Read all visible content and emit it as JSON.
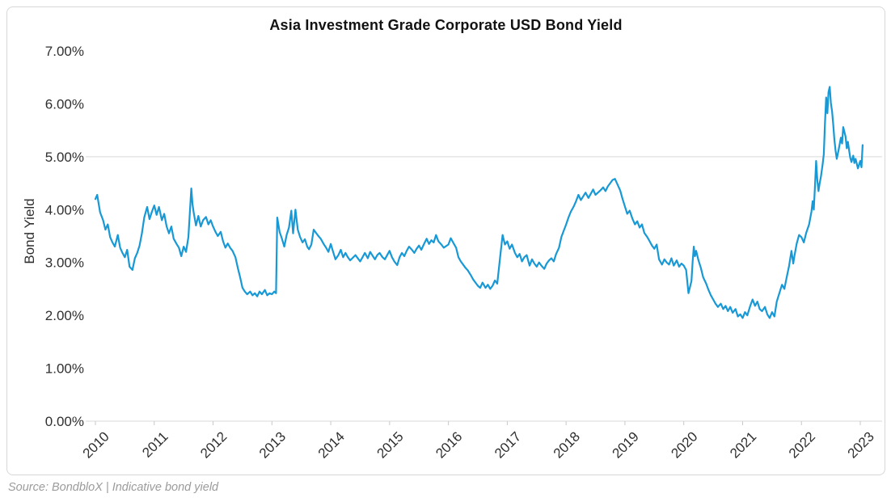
{
  "title": "Asia Investment Grade Corporate USD Bond Yield",
  "y_axis_title": "Bond Yield",
  "source_note": "Source: BondbloX | Indicative bond yield",
  "colors": {
    "line": "#1899D5",
    "grid": "#d9d9d9",
    "tick": "#c9c9c9",
    "label": "#2f2f2f",
    "title": "#121212",
    "source": "#9b9b9b",
    "card_border": "#d7d7d7"
  },
  "chart_data": {
    "type": "line",
    "title": "Asia Investment Grade Corporate USD Bond Yield",
    "xlabel": "",
    "ylabel": "Bond Yield",
    "series_name": "Indicative bond yield (%)",
    "legend": "none",
    "grid": "single horizontal gridline at 5.00% plus x-axis baseline",
    "gridline_at": 5,
    "ylim": [
      0,
      7
    ],
    "xlim": [
      2010,
      2023.37
    ],
    "x_ticks": [
      2010,
      2011,
      2012,
      2013,
      2014,
      2015,
      2016,
      2017,
      2018,
      2019,
      2020,
      2021,
      2022,
      2023
    ],
    "y_tick_values": [
      0,
      1,
      2,
      3,
      4,
      5,
      6,
      7
    ],
    "y_tick_labels": [
      "0.00%",
      "1.00%",
      "2.00%",
      "3.00%",
      "4.00%",
      "5.00%",
      "6.00%",
      "7.00%"
    ],
    "line_color": "#1899D5",
    "points": [
      [
        2010.0,
        4.2
      ],
      [
        2010.03,
        4.28
      ],
      [
        2010.08,
        3.95
      ],
      [
        2010.13,
        3.8
      ],
      [
        2010.17,
        3.62
      ],
      [
        2010.21,
        3.72
      ],
      [
        2010.25,
        3.48
      ],
      [
        2010.29,
        3.38
      ],
      [
        2010.33,
        3.3
      ],
      [
        2010.38,
        3.52
      ],
      [
        2010.42,
        3.28
      ],
      [
        2010.46,
        3.18
      ],
      [
        2010.5,
        3.1
      ],
      [
        2010.54,
        3.24
      ],
      [
        2010.58,
        2.92
      ],
      [
        2010.63,
        2.86
      ],
      [
        2010.67,
        3.08
      ],
      [
        2010.71,
        3.18
      ],
      [
        2010.75,
        3.32
      ],
      [
        2010.79,
        3.55
      ],
      [
        2010.83,
        3.85
      ],
      [
        2010.88,
        4.05
      ],
      [
        2010.92,
        3.82
      ],
      [
        2010.96,
        3.96
      ],
      [
        2011.0,
        4.08
      ],
      [
        2011.04,
        3.9
      ],
      [
        2011.08,
        4.05
      ],
      [
        2011.13,
        3.8
      ],
      [
        2011.17,
        3.92
      ],
      [
        2011.21,
        3.68
      ],
      [
        2011.25,
        3.55
      ],
      [
        2011.29,
        3.68
      ],
      [
        2011.33,
        3.45
      ],
      [
        2011.38,
        3.35
      ],
      [
        2011.42,
        3.28
      ],
      [
        2011.46,
        3.12
      ],
      [
        2011.5,
        3.3
      ],
      [
        2011.54,
        3.2
      ],
      [
        2011.58,
        3.48
      ],
      [
        2011.63,
        4.4
      ],
      [
        2011.65,
        4.1
      ],
      [
        2011.67,
        3.95
      ],
      [
        2011.71,
        3.7
      ],
      [
        2011.75,
        3.88
      ],
      [
        2011.79,
        3.68
      ],
      [
        2011.83,
        3.8
      ],
      [
        2011.88,
        3.86
      ],
      [
        2011.92,
        3.72
      ],
      [
        2011.96,
        3.8
      ],
      [
        2012.0,
        3.68
      ],
      [
        2012.04,
        3.58
      ],
      [
        2012.08,
        3.5
      ],
      [
        2012.13,
        3.58
      ],
      [
        2012.17,
        3.4
      ],
      [
        2012.21,
        3.28
      ],
      [
        2012.25,
        3.36
      ],
      [
        2012.29,
        3.28
      ],
      [
        2012.33,
        3.22
      ],
      [
        2012.38,
        3.1
      ],
      [
        2012.42,
        2.9
      ],
      [
        2012.46,
        2.72
      ],
      [
        2012.5,
        2.52
      ],
      [
        2012.54,
        2.45
      ],
      [
        2012.58,
        2.4
      ],
      [
        2012.63,
        2.45
      ],
      [
        2012.67,
        2.38
      ],
      [
        2012.71,
        2.42
      ],
      [
        2012.75,
        2.36
      ],
      [
        2012.79,
        2.45
      ],
      [
        2012.83,
        2.4
      ],
      [
        2012.88,
        2.48
      ],
      [
        2012.92,
        2.38
      ],
      [
        2012.96,
        2.42
      ],
      [
        2013.0,
        2.4
      ],
      [
        2013.04,
        2.45
      ],
      [
        2013.07,
        2.42
      ],
      [
        2013.09,
        3.85
      ],
      [
        2013.13,
        3.58
      ],
      [
        2013.17,
        3.45
      ],
      [
        2013.21,
        3.3
      ],
      [
        2013.25,
        3.52
      ],
      [
        2013.29,
        3.66
      ],
      [
        2013.33,
        3.98
      ],
      [
        2013.36,
        3.55
      ],
      [
        2013.4,
        4.0
      ],
      [
        2013.44,
        3.62
      ],
      [
        2013.48,
        3.48
      ],
      [
        2013.52,
        3.38
      ],
      [
        2013.56,
        3.44
      ],
      [
        2013.6,
        3.3
      ],
      [
        2013.63,
        3.25
      ],
      [
        2013.67,
        3.34
      ],
      [
        2013.71,
        3.62
      ],
      [
        2013.75,
        3.56
      ],
      [
        2013.79,
        3.5
      ],
      [
        2013.83,
        3.45
      ],
      [
        2013.88,
        3.35
      ],
      [
        2013.92,
        3.28
      ],
      [
        2013.96,
        3.2
      ],
      [
        2014.0,
        3.35
      ],
      [
        2014.04,
        3.2
      ],
      [
        2014.08,
        3.06
      ],
      [
        2014.13,
        3.14
      ],
      [
        2014.17,
        3.24
      ],
      [
        2014.21,
        3.1
      ],
      [
        2014.25,
        3.18
      ],
      [
        2014.29,
        3.1
      ],
      [
        2014.33,
        3.04
      ],
      [
        2014.42,
        3.14
      ],
      [
        2014.5,
        3.02
      ],
      [
        2014.54,
        3.1
      ],
      [
        2014.58,
        3.18
      ],
      [
        2014.63,
        3.08
      ],
      [
        2014.67,
        3.2
      ],
      [
        2014.75,
        3.06
      ],
      [
        2014.79,
        3.14
      ],
      [
        2014.83,
        3.18
      ],
      [
        2014.88,
        3.1
      ],
      [
        2014.92,
        3.06
      ],
      [
        2015.0,
        3.22
      ],
      [
        2015.04,
        3.1
      ],
      [
        2015.08,
        3.02
      ],
      [
        2015.13,
        2.95
      ],
      [
        2015.17,
        3.1
      ],
      [
        2015.21,
        3.18
      ],
      [
        2015.25,
        3.12
      ],
      [
        2015.29,
        3.22
      ],
      [
        2015.33,
        3.3
      ],
      [
        2015.38,
        3.24
      ],
      [
        2015.42,
        3.18
      ],
      [
        2015.46,
        3.26
      ],
      [
        2015.5,
        3.32
      ],
      [
        2015.54,
        3.24
      ],
      [
        2015.58,
        3.34
      ],
      [
        2015.63,
        3.45
      ],
      [
        2015.67,
        3.35
      ],
      [
        2015.71,
        3.42
      ],
      [
        2015.75,
        3.38
      ],
      [
        2015.79,
        3.52
      ],
      [
        2015.83,
        3.4
      ],
      [
        2015.88,
        3.34
      ],
      [
        2015.92,
        3.28
      ],
      [
        2016.0,
        3.34
      ],
      [
        2016.04,
        3.46
      ],
      [
        2016.08,
        3.38
      ],
      [
        2016.13,
        3.28
      ],
      [
        2016.17,
        3.1
      ],
      [
        2016.21,
        3.02
      ],
      [
        2016.25,
        2.96
      ],
      [
        2016.29,
        2.9
      ],
      [
        2016.33,
        2.85
      ],
      [
        2016.38,
        2.76
      ],
      [
        2016.42,
        2.68
      ],
      [
        2016.46,
        2.62
      ],
      [
        2016.5,
        2.56
      ],
      [
        2016.54,
        2.52
      ],
      [
        2016.58,
        2.62
      ],
      [
        2016.63,
        2.52
      ],
      [
        2016.67,
        2.58
      ],
      [
        2016.71,
        2.5
      ],
      [
        2016.75,
        2.56
      ],
      [
        2016.79,
        2.66
      ],
      [
        2016.83,
        2.6
      ],
      [
        2016.88,
        3.12
      ],
      [
        2016.92,
        3.52
      ],
      [
        2016.96,
        3.34
      ],
      [
        2017.0,
        3.4
      ],
      [
        2017.04,
        3.26
      ],
      [
        2017.08,
        3.34
      ],
      [
        2017.13,
        3.18
      ],
      [
        2017.17,
        3.1
      ],
      [
        2017.21,
        3.16
      ],
      [
        2017.25,
        3.02
      ],
      [
        2017.29,
        3.1
      ],
      [
        2017.33,
        3.14
      ],
      [
        2017.38,
        2.94
      ],
      [
        2017.42,
        3.06
      ],
      [
        2017.46,
        2.98
      ],
      [
        2017.5,
        2.92
      ],
      [
        2017.54,
        3.0
      ],
      [
        2017.58,
        2.94
      ],
      [
        2017.63,
        2.88
      ],
      [
        2017.67,
        2.98
      ],
      [
        2017.71,
        3.04
      ],
      [
        2017.75,
        3.08
      ],
      [
        2017.79,
        3.02
      ],
      [
        2017.83,
        3.16
      ],
      [
        2017.88,
        3.28
      ],
      [
        2017.92,
        3.48
      ],
      [
        2017.96,
        3.6
      ],
      [
        2018.0,
        3.72
      ],
      [
        2018.04,
        3.85
      ],
      [
        2018.08,
        3.96
      ],
      [
        2018.13,
        4.06
      ],
      [
        2018.17,
        4.16
      ],
      [
        2018.21,
        4.28
      ],
      [
        2018.25,
        4.18
      ],
      [
        2018.29,
        4.25
      ],
      [
        2018.33,
        4.32
      ],
      [
        2018.38,
        4.22
      ],
      [
        2018.42,
        4.3
      ],
      [
        2018.46,
        4.38
      ],
      [
        2018.5,
        4.28
      ],
      [
        2018.54,
        4.32
      ],
      [
        2018.58,
        4.36
      ],
      [
        2018.63,
        4.42
      ],
      [
        2018.67,
        4.35
      ],
      [
        2018.71,
        4.44
      ],
      [
        2018.75,
        4.5
      ],
      [
        2018.79,
        4.56
      ],
      [
        2018.83,
        4.58
      ],
      [
        2018.88,
        4.46
      ],
      [
        2018.92,
        4.36
      ],
      [
        2018.96,
        4.2
      ],
      [
        2019.0,
        4.06
      ],
      [
        2019.04,
        3.92
      ],
      [
        2019.08,
        3.98
      ],
      [
        2019.13,
        3.82
      ],
      [
        2019.17,
        3.72
      ],
      [
        2019.21,
        3.78
      ],
      [
        2019.25,
        3.66
      ],
      [
        2019.29,
        3.72
      ],
      [
        2019.33,
        3.56
      ],
      [
        2019.38,
        3.48
      ],
      [
        2019.42,
        3.4
      ],
      [
        2019.46,
        3.32
      ],
      [
        2019.5,
        3.26
      ],
      [
        2019.54,
        3.34
      ],
      [
        2019.58,
        3.06
      ],
      [
        2019.63,
        2.96
      ],
      [
        2019.67,
        3.06
      ],
      [
        2019.71,
        3.0
      ],
      [
        2019.75,
        2.96
      ],
      [
        2019.79,
        3.08
      ],
      [
        2019.83,
        2.94
      ],
      [
        2019.88,
        3.04
      ],
      [
        2019.92,
        2.92
      ],
      [
        2019.96,
        2.98
      ],
      [
        2020.0,
        2.94
      ],
      [
        2020.04,
        2.86
      ],
      [
        2020.08,
        2.42
      ],
      [
        2020.13,
        2.65
      ],
      [
        2020.15,
        3.0
      ],
      [
        2020.17,
        3.3
      ],
      [
        2020.19,
        3.12
      ],
      [
        2020.21,
        3.22
      ],
      [
        2020.25,
        3.04
      ],
      [
        2020.29,
        2.9
      ],
      [
        2020.33,
        2.72
      ],
      [
        2020.38,
        2.6
      ],
      [
        2020.42,
        2.48
      ],
      [
        2020.46,
        2.38
      ],
      [
        2020.5,
        2.3
      ],
      [
        2020.54,
        2.22
      ],
      [
        2020.58,
        2.16
      ],
      [
        2020.63,
        2.22
      ],
      [
        2020.67,
        2.12
      ],
      [
        2020.71,
        2.18
      ],
      [
        2020.75,
        2.08
      ],
      [
        2020.79,
        2.16
      ],
      [
        2020.83,
        2.05
      ],
      [
        2020.88,
        2.12
      ],
      [
        2020.92,
        1.98
      ],
      [
        2020.96,
        2.02
      ],
      [
        2021.0,
        1.95
      ],
      [
        2021.04,
        2.06
      ],
      [
        2021.08,
        2.0
      ],
      [
        2021.13,
        2.18
      ],
      [
        2021.17,
        2.3
      ],
      [
        2021.21,
        2.18
      ],
      [
        2021.25,
        2.26
      ],
      [
        2021.29,
        2.12
      ],
      [
        2021.33,
        2.08
      ],
      [
        2021.38,
        2.16
      ],
      [
        2021.42,
        2.02
      ],
      [
        2021.46,
        1.95
      ],
      [
        2021.5,
        2.06
      ],
      [
        2021.54,
        1.98
      ],
      [
        2021.58,
        2.26
      ],
      [
        2021.63,
        2.44
      ],
      [
        2021.67,
        2.58
      ],
      [
        2021.71,
        2.5
      ],
      [
        2021.75,
        2.72
      ],
      [
        2021.79,
        2.94
      ],
      [
        2021.83,
        3.22
      ],
      [
        2021.86,
        2.98
      ],
      [
        2021.88,
        3.12
      ],
      [
        2021.92,
        3.36
      ],
      [
        2021.96,
        3.52
      ],
      [
        2022.0,
        3.48
      ],
      [
        2022.04,
        3.38
      ],
      [
        2022.08,
        3.56
      ],
      [
        2022.13,
        3.72
      ],
      [
        2022.17,
        3.96
      ],
      [
        2022.19,
        4.16
      ],
      [
        2022.21,
        4.0
      ],
      [
        2022.23,
        4.45
      ],
      [
        2022.25,
        4.92
      ],
      [
        2022.27,
        4.55
      ],
      [
        2022.29,
        4.35
      ],
      [
        2022.31,
        4.5
      ],
      [
        2022.33,
        4.62
      ],
      [
        2022.36,
        4.85
      ],
      [
        2022.38,
        5.05
      ],
      [
        2022.4,
        5.62
      ],
      [
        2022.42,
        6.12
      ],
      [
        2022.44,
        5.82
      ],
      [
        2022.46,
        6.22
      ],
      [
        2022.48,
        6.32
      ],
      [
        2022.5,
        6.02
      ],
      [
        2022.52,
        5.86
      ],
      [
        2022.54,
        5.62
      ],
      [
        2022.56,
        5.32
      ],
      [
        2022.58,
        5.12
      ],
      [
        2022.6,
        4.96
      ],
      [
        2022.63,
        5.12
      ],
      [
        2022.67,
        5.36
      ],
      [
        2022.69,
        5.25
      ],
      [
        2022.71,
        5.56
      ],
      [
        2022.75,
        5.38
      ],
      [
        2022.77,
        5.16
      ],
      [
        2022.79,
        5.28
      ],
      [
        2022.81,
        5.12
      ],
      [
        2022.83,
        4.98
      ],
      [
        2022.85,
        4.9
      ],
      [
        2022.88,
        5.02
      ],
      [
        2022.9,
        4.88
      ],
      [
        2022.92,
        4.96
      ],
      [
        2022.96,
        4.78
      ],
      [
        2023.0,
        4.92
      ],
      [
        2023.02,
        4.8
      ],
      [
        2023.04,
        5.22
      ]
    ]
  }
}
